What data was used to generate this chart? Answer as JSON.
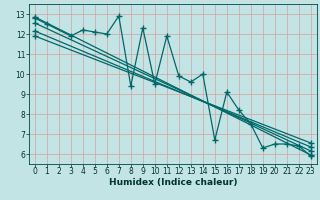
{
  "xlabel": "Humidex (Indice chaleur)",
  "xlim": [
    -0.5,
    23.5
  ],
  "ylim": [
    5.5,
    13.5
  ],
  "yticks": [
    6,
    7,
    8,
    9,
    10,
    11,
    12,
    13
  ],
  "xticks": [
    0,
    1,
    2,
    3,
    4,
    5,
    6,
    7,
    8,
    9,
    10,
    11,
    12,
    13,
    14,
    15,
    16,
    17,
    18,
    19,
    20,
    21,
    22,
    23
  ],
  "bg_color": "#c2e4e4",
  "grid_color": "#d4a0a0",
  "line_color": "#006868",
  "zigzag_x": [
    0,
    1,
    3,
    4,
    5,
    6,
    7,
    8,
    9,
    10,
    11,
    12,
    13,
    14,
    15,
    16,
    17,
    18,
    19,
    20,
    21,
    22,
    23
  ],
  "zigzag_y": [
    12.8,
    12.5,
    11.9,
    12.2,
    12.1,
    12.0,
    12.9,
    9.4,
    12.3,
    9.5,
    11.9,
    9.9,
    9.6,
    10.0,
    6.7,
    9.1,
    8.2,
    7.5,
    6.3,
    6.5,
    6.5,
    6.4,
    5.9
  ],
  "line1_y_start": 12.85,
  "line1_y_end": 5.95,
  "line2_y_start": 12.55,
  "line2_y_end": 6.15,
  "line3_y_start": 12.15,
  "line3_y_end": 6.35,
  "line4_y_start": 11.9,
  "line4_y_end": 6.55,
  "markersize": 4,
  "linewidth": 0.9,
  "tick_fontsize": 5.5,
  "xlabel_fontsize": 6.5
}
